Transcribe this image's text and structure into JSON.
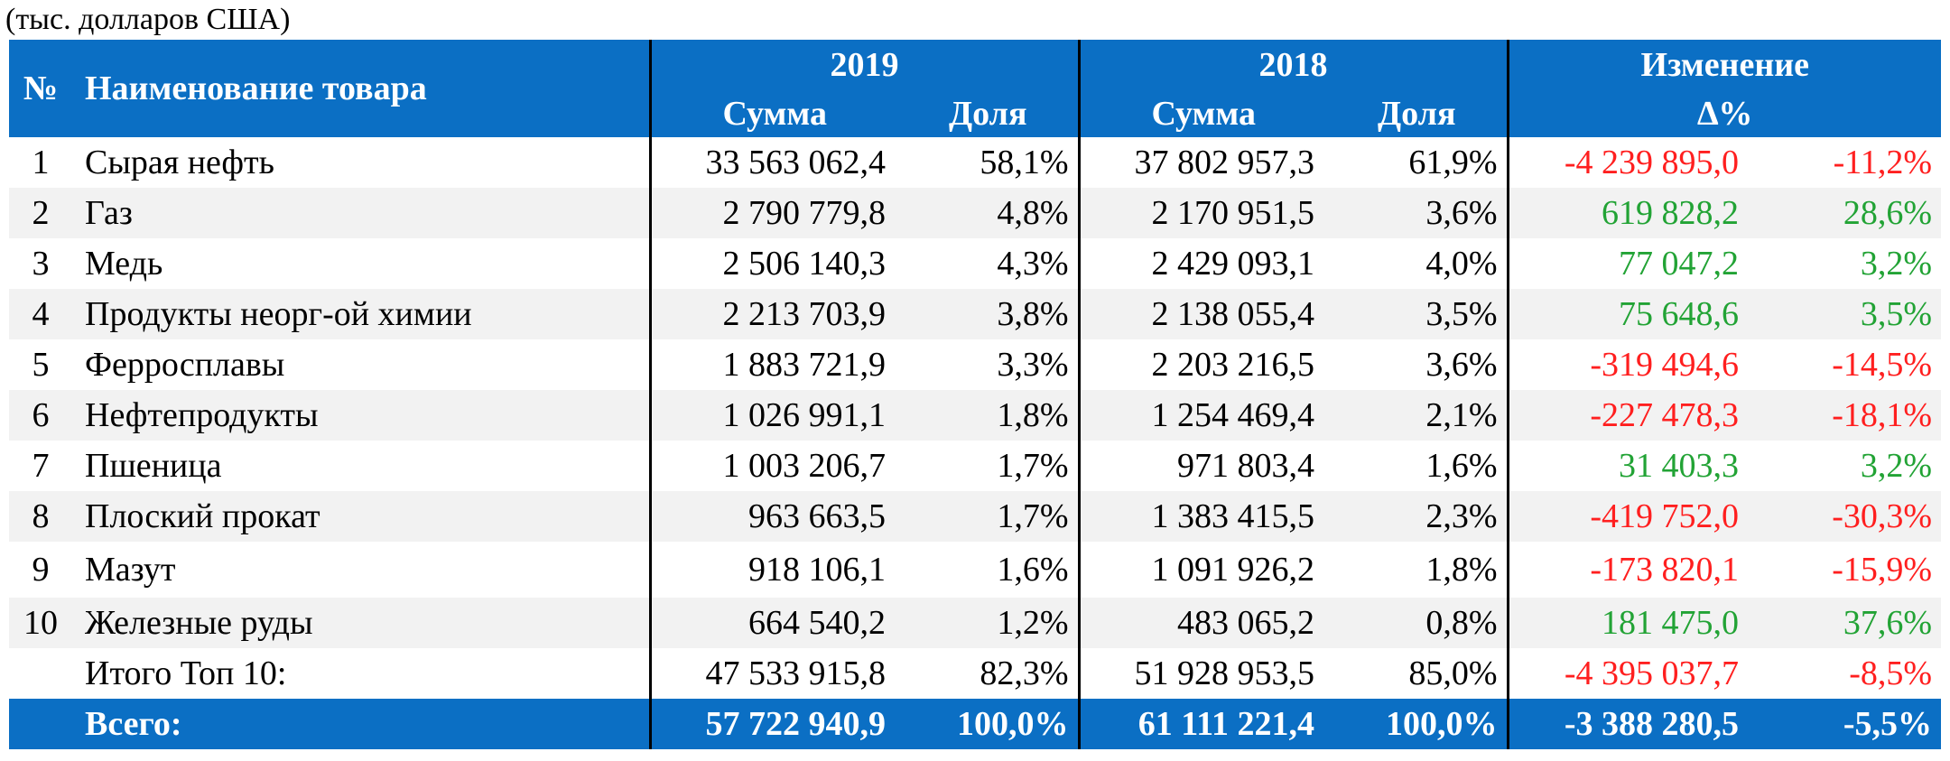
{
  "caption": "(тыс. долларов США)",
  "header": {
    "num": "№",
    "name": "Наименование товара",
    "year_2019": "2019",
    "year_2018": "2018",
    "change": "Изменение",
    "sum": "Сумма",
    "share": "Доля",
    "delta": "∆%"
  },
  "rows": [
    {
      "num": "1",
      "name": "Сырая нефть",
      "sum2019": "33 563 062,4",
      "share2019": "58,1%",
      "sum2018": "37 802 957,3",
      "share2018": "61,9%",
      "change": "-4 239 895,0",
      "change_pct": "-11,2%"
    },
    {
      "num": "2",
      "name": "Газ",
      "sum2019": "2 790 779,8",
      "share2019": "4,8%",
      "sum2018": "2 170 951,5",
      "share2018": "3,6%",
      "change": "619 828,2",
      "change_pct": "28,6%"
    },
    {
      "num": "3",
      "name": "Медь",
      "sum2019": "2 506 140,3",
      "share2019": "4,3%",
      "sum2018": "2 429 093,1",
      "share2018": "4,0%",
      "change": "77 047,2",
      "change_pct": "3,2%"
    },
    {
      "num": "4",
      "name": "Продукты неорг-ой химии",
      "sum2019": "2 213 703,9",
      "share2019": "3,8%",
      "sum2018": "2 138 055,4",
      "share2018": "3,5%",
      "change": "75 648,6",
      "change_pct": "3,5%"
    },
    {
      "num": "5",
      "name": "Ферросплавы",
      "sum2019": "1 883 721,9",
      "share2019": "3,3%",
      "sum2018": "2 203 216,5",
      "share2018": "3,6%",
      "change": "-319 494,6",
      "change_pct": "-14,5%"
    },
    {
      "num": "6",
      "name": "Нефтепродукты",
      "sum2019": "1 026 991,1",
      "share2019": "1,8%",
      "sum2018": "1 254 469,4",
      "share2018": "2,1%",
      "change": "-227 478,3",
      "change_pct": "-18,1%"
    },
    {
      "num": "7",
      "name": "Пшеница",
      "sum2019": "1 003 206,7",
      "share2019": "1,7%",
      "sum2018": "971 803,4",
      "share2018": "1,6%",
      "change": "31 403,3",
      "change_pct": "3,2%"
    },
    {
      "num": "8",
      "name": "Плоский прокат",
      "sum2019": "963 663,5",
      "share2019": "1,7%",
      "sum2018": "1 383 415,5",
      "share2018": "2,3%",
      "change": "-419 752,0",
      "change_pct": "-30,3%"
    },
    {
      "num": "9",
      "name": "Мазут",
      "sum2019": "918 106,1",
      "share2019": "1,6%",
      "sum2018": "1 091 926,2",
      "share2018": "1,8%",
      "change": "-173 820,1",
      "change_pct": "-15,9%"
    },
    {
      "num": "10",
      "name": "Железные руды",
      "sum2019": "664 540,2",
      "share2019": "1,2%",
      "sum2018": "483 065,2",
      "share2018": "0,8%",
      "change": "181 475,0",
      "change_pct": "37,6%"
    }
  ],
  "subtotal": {
    "label": "Итого Топ 10:",
    "sum2019": "47 533 915,8",
    "share2019": "82,3%",
    "sum2018": "51 928 953,5",
    "share2018": "85,0%",
    "change": "-4 395 037,7",
    "change_pct": "-8,5%"
  },
  "total": {
    "label": "Всего:",
    "sum2019": "57 722 940,9",
    "share2019": "100,0%",
    "sum2018": "61 111 221,4",
    "share2018": "100,0%",
    "change": "-3 388 280,5",
    "change_pct": "-5,5%"
  },
  "colors": {
    "header_bg": "#0b6fc4",
    "negative": "#ff1f1f",
    "positive": "#22a335",
    "stripe": "#f2f2f2"
  }
}
